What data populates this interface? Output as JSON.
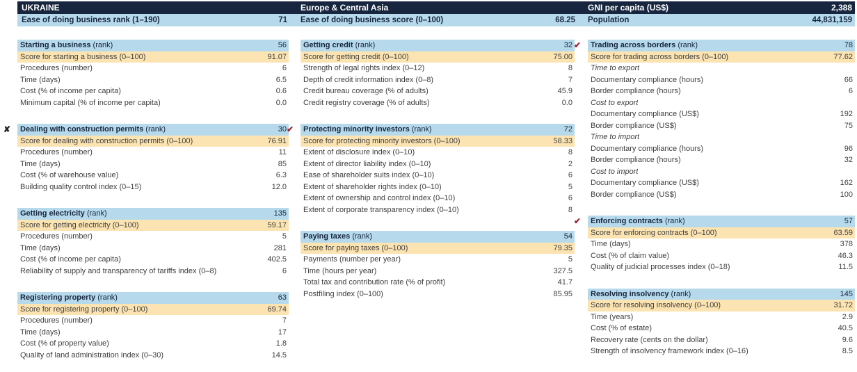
{
  "colors": {
    "navy": "#17263E",
    "light_blue": "#B6DAEB",
    "score_orange": "#FCE4B2",
    "check_red": "#A81E2C",
    "x_dark": "#231F20",
    "ink": "#3E3E3D"
  },
  "marks": {
    "check": "✔",
    "x": "✘"
  },
  "header": {
    "col1": {
      "title": "UKRAINE",
      "label": "Ease of doing business rank (1–190)",
      "value": "71"
    },
    "col2": {
      "title": "Europe & Central Asia",
      "label": "Ease of doing business score (0–100)",
      "value": "68.25"
    },
    "col3": {
      "title": "GNI per capita (US$)",
      "title_value": "2,388",
      "label": "Population",
      "value": "44,831,159"
    }
  },
  "columns": [
    {
      "name": "column-1",
      "sections": [
        {
          "mark": null,
          "title": "Starting a business",
          "suffix": "(rank)",
          "value": "56",
          "rows": [
            {
              "kind": "score",
              "label": "Score for starting a business (0–100)",
              "value": "91.07"
            },
            {
              "kind": "detail",
              "label": "Procedures (number)",
              "value": "6"
            },
            {
              "kind": "detail",
              "label": "Time (days)",
              "value": "6.5"
            },
            {
              "kind": "detail",
              "label": "Cost (% of income per capita)",
              "value": "0.6"
            },
            {
              "kind": "detail",
              "label": "Minimum capital (% of income per capita)",
              "value": "0.0"
            }
          ]
        },
        {
          "mark": "x",
          "title": "Dealing with construction permits",
          "suffix": "(rank)",
          "value": "30",
          "rows": [
            {
              "kind": "score",
              "label": "Score for dealing with construction permits (0–100)",
              "value": "76.91"
            },
            {
              "kind": "detail",
              "label": "Procedures (number)",
              "value": "11"
            },
            {
              "kind": "detail",
              "label": "Time (days)",
              "value": "85"
            },
            {
              "kind": "detail",
              "label": "Cost (% of warehouse value)",
              "value": "6.3"
            },
            {
              "kind": "detail",
              "label": "Building quality control index (0–15)",
              "value": "12.0"
            }
          ]
        },
        {
          "mark": null,
          "title": "Getting electricity",
          "suffix": "(rank)",
          "value": "135",
          "rows": [
            {
              "kind": "score",
              "label": "Score for getting electricity (0–100)",
              "value": "59.17"
            },
            {
              "kind": "detail",
              "label": "Procedures (number)",
              "value": "5"
            },
            {
              "kind": "detail",
              "label": "Time (days)",
              "value": "281"
            },
            {
              "kind": "detail",
              "label": "Cost (% of income per capita)",
              "value": "402.5"
            },
            {
              "kind": "detail",
              "label": "Reliability of supply and transparency of tariffs index (0–8)",
              "value": "6"
            }
          ]
        },
        {
          "mark": null,
          "title": "Registering property",
          "suffix": "(rank)",
          "value": "63",
          "rows": [
            {
              "kind": "score",
              "label": "Score for registering property (0–100)",
              "value": "69.74"
            },
            {
              "kind": "detail",
              "label": "Procedures (number)",
              "value": "7"
            },
            {
              "kind": "detail",
              "label": "Time (days)",
              "value": "17"
            },
            {
              "kind": "detail",
              "label": "Cost (% of property value)",
              "value": "1.8"
            },
            {
              "kind": "detail",
              "label": "Quality of land administration index (0–30)",
              "value": "14.5"
            }
          ]
        }
      ]
    },
    {
      "name": "column-2",
      "sections": [
        {
          "mark": null,
          "title": "Getting credit",
          "suffix": "(rank)",
          "value": "32",
          "rows": [
            {
              "kind": "score",
              "label": "Score for getting credit (0–100)",
              "value": "75.00"
            },
            {
              "kind": "detail",
              "label": "Strength of legal rights index (0–12)",
              "value": "8"
            },
            {
              "kind": "detail",
              "label": "Depth of credit information index (0–8)",
              "value": "7"
            },
            {
              "kind": "detail",
              "label": "Credit bureau coverage (% of adults)",
              "value": "45.9"
            },
            {
              "kind": "detail",
              "label": "Credit registry coverage (% of adults)",
              "value": "0.0"
            }
          ]
        },
        {
          "mark": "check",
          "title": "Protecting minority investors",
          "suffix": "(rank)",
          "value": "72",
          "rows": [
            {
              "kind": "score",
              "label": "Score for protecting minority investors (0–100)",
              "value": "58.33"
            },
            {
              "kind": "detail",
              "label": "Extent of disclosure index (0–10)",
              "value": "8"
            },
            {
              "kind": "detail",
              "label": "Extent of director liability index (0–10)",
              "value": "2"
            },
            {
              "kind": "detail",
              "label": "Ease of shareholder suits index (0–10)",
              "value": "6"
            },
            {
              "kind": "detail",
              "label": "Extent of shareholder rights index (0–10)",
              "value": "5"
            },
            {
              "kind": "detail",
              "label": "Extent of ownership and control index (0–10)",
              "value": "6"
            },
            {
              "kind": "detail",
              "label": "Extent of corporate transparency index (0–10)",
              "value": "8"
            }
          ]
        },
        {
          "mark": null,
          "title": "Paying taxes",
          "suffix": "(rank)",
          "value": "54",
          "rows": [
            {
              "kind": "score",
              "label": "Score for paying taxes (0–100)",
              "value": "79.35"
            },
            {
              "kind": "detail",
              "label": "Payments (number per year)",
              "value": "5"
            },
            {
              "kind": "detail",
              "label": "Time (hours per year)",
              "value": "327.5"
            },
            {
              "kind": "detail",
              "label": "Total tax and contribution rate (% of profit)",
              "value": "41.7"
            },
            {
              "kind": "detail",
              "label": "Postfiling index (0–100)",
              "value": "85.95"
            }
          ]
        }
      ]
    },
    {
      "name": "column-3",
      "sections": [
        {
          "mark": "check",
          "title": "Trading across borders",
          "suffix": "(rank)",
          "value": "78",
          "rows": [
            {
              "kind": "score",
              "label": "Score for trading across borders (0–100)",
              "value": "77.62"
            },
            {
              "kind": "group",
              "label": "Time to export",
              "value": ""
            },
            {
              "kind": "detail",
              "label": "Documentary compliance (hours)",
              "value": "66"
            },
            {
              "kind": "detail",
              "label": "Border compliance (hours)",
              "value": "6"
            },
            {
              "kind": "group",
              "label": "Cost to export",
              "value": ""
            },
            {
              "kind": "detail",
              "label": "Documentary compliance (US$)",
              "value": "192"
            },
            {
              "kind": "detail",
              "label": "Border compliance (US$)",
              "value": "75"
            },
            {
              "kind": "group",
              "label": "Time to import",
              "value": ""
            },
            {
              "kind": "detail",
              "label": "Documentary compliance (hours)",
              "value": "96"
            },
            {
              "kind": "detail",
              "label": "Border compliance (hours)",
              "value": "32"
            },
            {
              "kind": "group",
              "label": "Cost to import",
              "value": ""
            },
            {
              "kind": "detail",
              "label": "Documentary compliance (US$)",
              "value": "162"
            },
            {
              "kind": "detail",
              "label": "Border compliance (US$)",
              "value": "100"
            }
          ]
        },
        {
          "mark": "check",
          "title": "Enforcing contracts",
          "suffix": "(rank)",
          "value": "57",
          "rows": [
            {
              "kind": "score",
              "label": "Score for enforcing contracts (0–100)",
              "value": "63.59"
            },
            {
              "kind": "detail",
              "label": "Time (days)",
              "value": "378"
            },
            {
              "kind": "detail",
              "label": "Cost (% of claim value)",
              "value": "46.3"
            },
            {
              "kind": "detail",
              "label": "Quality of judicial processes index (0–18)",
              "value": "11.5"
            }
          ]
        },
        {
          "mark": null,
          "title": "Resolving insolvency",
          "suffix": "(rank)",
          "value": "145",
          "rows": [
            {
              "kind": "score",
              "label": "Score for resolving insolvency (0–100)",
              "value": "31.72"
            },
            {
              "kind": "detail",
              "label": "Time (years)",
              "value": "2.9"
            },
            {
              "kind": "detail",
              "label": "Cost (% of estate)",
              "value": "40.5"
            },
            {
              "kind": "detail",
              "label": "Recovery rate (cents on the dollar)",
              "value": "9.6"
            },
            {
              "kind": "detail",
              "label": "Strength of insolvency framework index (0–16)",
              "value": "8.5"
            }
          ]
        }
      ]
    }
  ]
}
